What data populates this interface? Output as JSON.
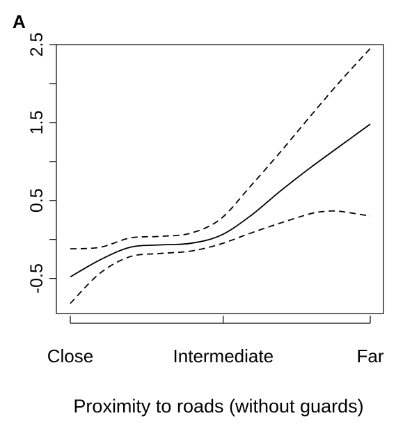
{
  "chart_data": {
    "type": "line",
    "panel_label": "A",
    "xlabel": "Proximity to roads (without guards)",
    "ylabel": "",
    "x_categories": [
      "Close",
      "Intermediate",
      "Far"
    ],
    "xlim": [
      0,
      1
    ],
    "ylim": [
      -0.95,
      2.5
    ],
    "y_ticks": [
      {
        "value": -0.5,
        "label": "-0.5"
      },
      {
        "value": 0.0,
        "label": ""
      },
      {
        "value": 0.5,
        "label": "0.5"
      },
      {
        "value": 1.0,
        "label": ""
      },
      {
        "value": 1.5,
        "label": "1.5"
      },
      {
        "value": 2.0,
        "label": ""
      },
      {
        "value": 2.5,
        "label": "2.5"
      }
    ],
    "x_ticks": [
      {
        "value": 0.0,
        "label": "Close"
      },
      {
        "value": 0.51,
        "label": "Intermediate"
      },
      {
        "value": 1.0,
        "label": "Far"
      }
    ],
    "series": [
      {
        "style": "solid",
        "x": [
          0.0,
          0.1,
          0.2,
          0.3,
          0.4,
          0.5,
          0.6,
          0.7,
          0.8,
          0.9,
          1.0
        ],
        "y": [
          -0.48,
          -0.26,
          -0.1,
          -0.07,
          -0.05,
          0.05,
          0.3,
          0.62,
          0.92,
          1.2,
          1.48
        ]
      },
      {
        "style": "dashed",
        "x": [
          0.0,
          0.1,
          0.2,
          0.3,
          0.4,
          0.5,
          0.6,
          0.7,
          0.8,
          0.9,
          1.0
        ],
        "y": [
          -0.12,
          -0.1,
          0.02,
          0.04,
          0.08,
          0.26,
          0.68,
          1.12,
          1.58,
          2.03,
          2.45
        ]
      },
      {
        "style": "dashed",
        "x": [
          0.0,
          0.1,
          0.2,
          0.3,
          0.4,
          0.5,
          0.6,
          0.7,
          0.8,
          0.85,
          0.9,
          1.0
        ],
        "y": [
          -0.82,
          -0.43,
          -0.22,
          -0.18,
          -0.15,
          -0.06,
          0.08,
          0.21,
          0.33,
          0.36,
          0.36,
          0.3
        ]
      }
    ]
  }
}
